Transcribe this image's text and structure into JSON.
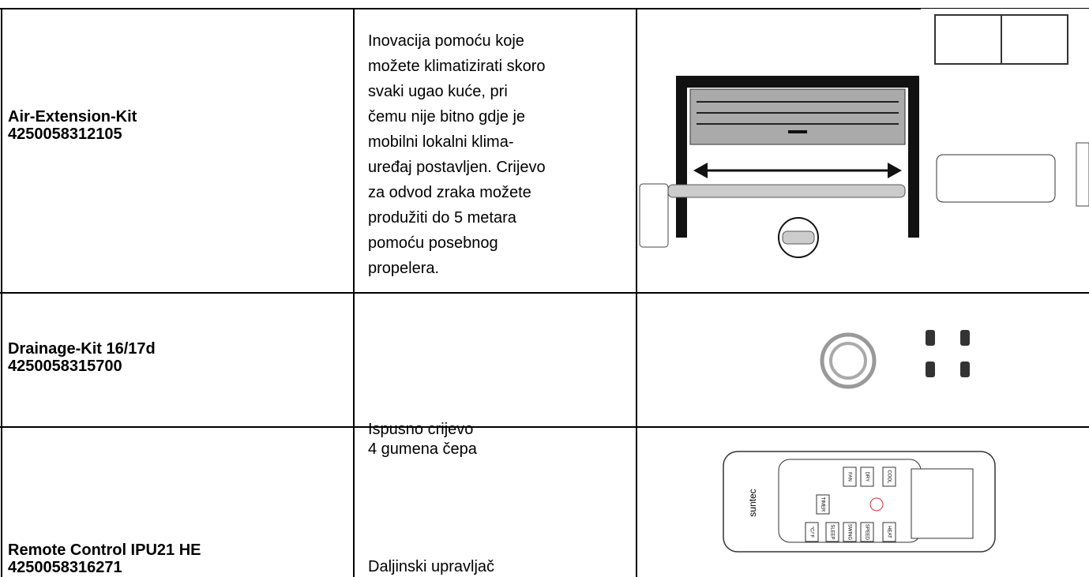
{
  "table": {
    "rows": [
      {
        "name": [
          "Air-Extension-Kit",
          "4250058312105"
        ],
        "description": [
          "Inovacija pomoću koje",
          "možete klimatizirati skoro",
          "svaki ugao kuće, pri",
          "čemu nije bitno gdje je",
          "mobilni lokalni klima-",
          "uređaj postavljen. Crijevo",
          "za odvod zraka možete",
          "produžiti do 5 metara",
          "pomoću posebnog",
          "propelera."
        ]
      },
      {
        "name": [
          "Drainage-Kit 16/17d",
          "4250058315700"
        ],
        "description": [
          "Ispusno crijevo",
          "4 gumena čepa"
        ]
      },
      {
        "name": [
          "Remote Control IPU21 HE",
          "4250058316271"
        ],
        "description": [
          "Daljinski upravljač"
        ]
      }
    ]
  },
  "remote": {
    "brand": "suntec",
    "buttons": [
      "FAN",
      "DRY",
      "COOL",
      "TIMER",
      "SLEEP",
      "SWING",
      "SPEED",
      "HEAT",
      "°C/°F"
    ]
  }
}
